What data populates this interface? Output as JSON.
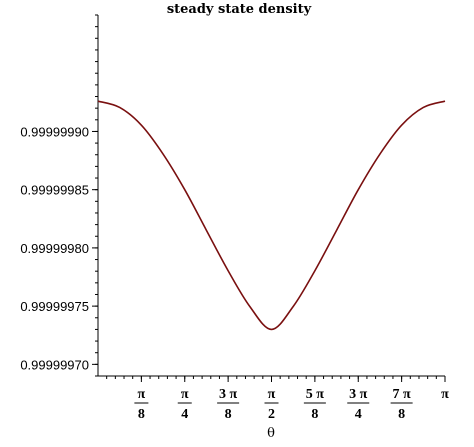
{
  "chart_data": {
    "type": "line",
    "title": "steady state density",
    "xlabel": "θ",
    "ylabel": "",
    "xlim": [
      0,
      3.14159265
    ],
    "ylim": [
      0.99999969,
      1.0
    ],
    "grid": false,
    "legend": "none",
    "line_color": "#7a1010",
    "y_ticks": [
      {
        "value": 0.9999999,
        "label": "0.99999990"
      },
      {
        "value": 0.99999985,
        "label": "0.99999985"
      },
      {
        "value": 0.9999998,
        "label": "0.99999980"
      },
      {
        "value": 0.99999975,
        "label": "0.99999975"
      },
      {
        "value": 0.9999997,
        "label": "0.99999970"
      }
    ],
    "x_ticks": [
      {
        "value": 0.3926991,
        "coef": "",
        "num": "π",
        "den": "8"
      },
      {
        "value": 0.7853982,
        "coef": "",
        "num": "π",
        "den": "4"
      },
      {
        "value": 1.1780972,
        "coef": "3",
        "num": "π",
        "den": "8"
      },
      {
        "value": 1.5707963,
        "coef": "",
        "num": "π",
        "den": "2"
      },
      {
        "value": 1.9634954,
        "coef": "5",
        "num": "π",
        "den": "8"
      },
      {
        "value": 2.3561945,
        "coef": "3",
        "num": "π",
        "den": "4"
      },
      {
        "value": 2.7488936,
        "coef": "7",
        "num": "π",
        "den": "8"
      },
      {
        "value": 3.1415927,
        "coef": "",
        "num": "π",
        "den": ""
      }
    ],
    "x": [
      0,
      0.19634954,
      0.39269908,
      0.58904862,
      0.78539816,
      0.9817477,
      1.17809725,
      1.37444679,
      1.57079633,
      1.76714587,
      1.96349541,
      2.15984495,
      2.35619449,
      2.55254403,
      2.74889357,
      2.94524311,
      3.14159265
    ],
    "y": [
      0.999999926,
      0.9999999206,
      0.9999999054,
      0.9999998806,
      0.99999985,
      0.9999998151,
      0.9999997804,
      0.9999997497,
      0.99999973,
      0.9999997497,
      0.9999997804,
      0.9999998151,
      0.99999985,
      0.9999998806,
      0.9999999054,
      0.9999999206,
      0.999999926
    ]
  }
}
